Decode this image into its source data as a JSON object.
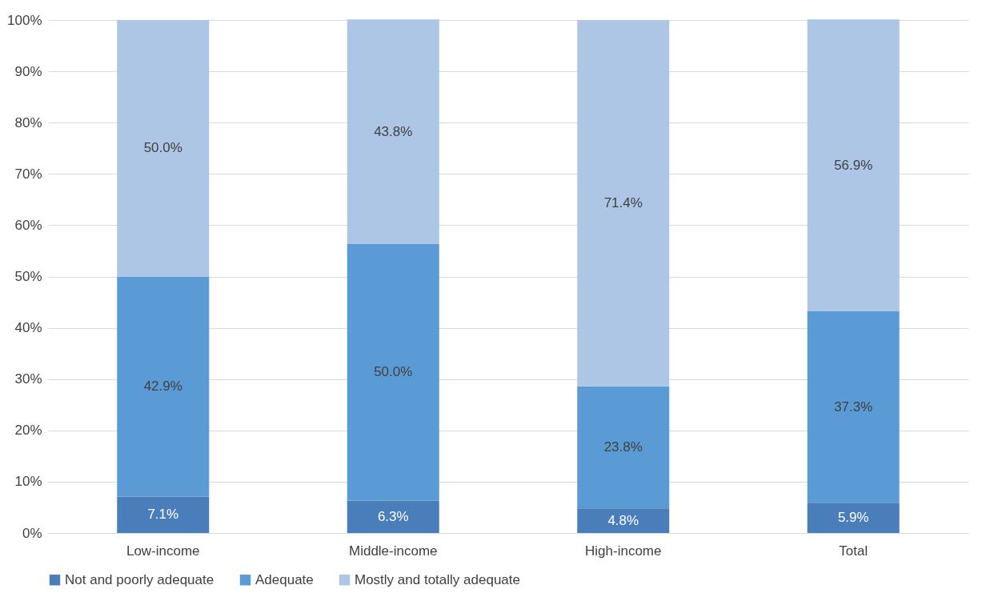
{
  "chart_data": {
    "type": "bar",
    "stacked": true,
    "categories": [
      "Low-income",
      "Middle-income",
      "High-income",
      "Total"
    ],
    "series": [
      {
        "name": "Not and poorly adequate",
        "color": "#4a7ebb",
        "values": [
          7.1,
          6.3,
          4.8,
          5.9
        ],
        "value_labels": [
          "7.1%",
          "6.3%",
          "4.8%",
          "5.9%"
        ]
      },
      {
        "name": "Adequate",
        "color": "#5b9bd5",
        "values": [
          42.9,
          50.0,
          23.8,
          37.3
        ],
        "value_labels": [
          "42.9%",
          "50.0%",
          "23.8%",
          "37.3%"
        ]
      },
      {
        "name": "Mostly and totally adequate",
        "color": "#adc6e6",
        "values": [
          50.0,
          43.8,
          71.4,
          56.9
        ],
        "value_labels": [
          "50.0%",
          "43.8%",
          "71.4%",
          "56.9%"
        ]
      }
    ],
    "ylim": [
      0,
      100
    ],
    "yticks": [
      {
        "value": 0,
        "label": "0%"
      },
      {
        "value": 10,
        "label": "10%"
      },
      {
        "value": 20,
        "label": "20%"
      },
      {
        "value": 30,
        "label": "30%"
      },
      {
        "value": 40,
        "label": "40%"
      },
      {
        "value": 50,
        "label": "50%"
      },
      {
        "value": 60,
        "label": "60%"
      },
      {
        "value": 70,
        "label": "70%"
      },
      {
        "value": 80,
        "label": "80%"
      },
      {
        "value": 90,
        "label": "90%"
      },
      {
        "value": 100,
        "label": "100%"
      }
    ],
    "grid": "y",
    "legend": "bottom"
  }
}
